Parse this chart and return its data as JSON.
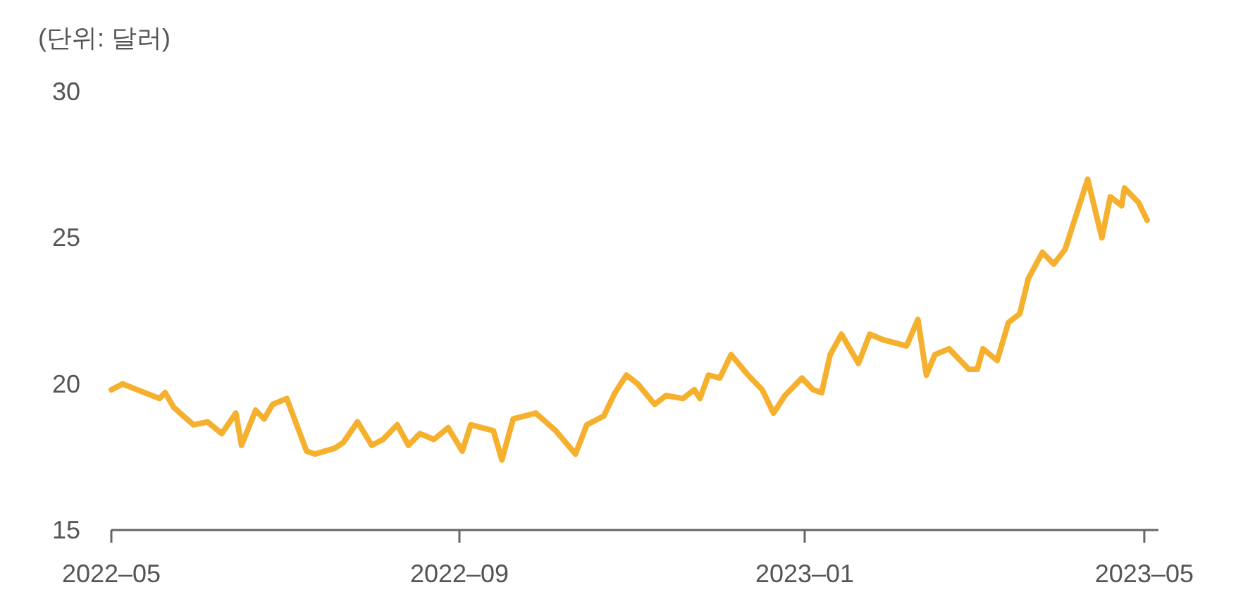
{
  "chart_data": {
    "type": "line",
    "ylabel": "(단위: 달러)",
    "x": [
      "2022-05-01",
      "2022-05-03",
      "2022-05-05",
      "2022-05-18",
      "2022-05-20",
      "2022-05-23",
      "2022-05-30",
      "2022-06-04",
      "2022-06-09",
      "2022-06-14",
      "2022-06-16",
      "2022-06-21",
      "2022-06-24",
      "2022-06-27",
      "2022-07-02",
      "2022-07-09",
      "2022-07-12",
      "2022-07-19",
      "2022-07-22",
      "2022-07-27",
      "2022-08-01",
      "2022-08-05",
      "2022-08-10",
      "2022-08-14",
      "2022-08-18",
      "2022-08-23",
      "2022-08-28",
      "2022-09-02",
      "2022-09-05",
      "2022-09-13",
      "2022-09-16",
      "2022-09-20",
      "2022-09-28",
      "2022-10-05",
      "2022-10-12",
      "2022-10-16",
      "2022-10-22",
      "2022-10-26",
      "2022-10-30",
      "2022-11-03",
      "2022-11-09",
      "2022-11-13",
      "2022-11-19",
      "2022-11-23",
      "2022-11-25",
      "2022-11-28",
      "2022-12-02",
      "2022-12-06",
      "2022-12-12",
      "2022-12-17",
      "2022-12-21",
      "2022-12-25",
      "2022-12-31",
      "2023-01-04",
      "2023-01-07",
      "2023-01-10",
      "2023-01-14",
      "2023-01-20",
      "2023-01-24",
      "2023-01-29",
      "2023-02-06",
      "2023-02-10",
      "2023-02-13",
      "2023-02-16",
      "2023-02-21",
      "2023-02-28",
      "2023-03-03",
      "2023-03-05",
      "2023-03-10",
      "2023-03-14",
      "2023-03-18",
      "2023-03-21",
      "2023-03-26",
      "2023-03-30",
      "2023-04-03",
      "2023-04-05",
      "2023-04-11",
      "2023-04-16",
      "2023-04-19",
      "2023-04-23",
      "2023-04-24",
      "2023-04-29",
      "2023-05-02"
    ],
    "series": [
      {
        "color": "#f5b02e",
        "values": [
          19.8,
          19.9,
          20.0,
          19.5,
          19.7,
          19.2,
          18.6,
          18.7,
          18.3,
          19.0,
          17.9,
          19.1,
          18.8,
          19.3,
          19.5,
          17.7,
          17.6,
          17.8,
          18.0,
          18.7,
          17.9,
          18.1,
          18.6,
          17.9,
          18.3,
          18.1,
          18.5,
          17.7,
          18.6,
          18.4,
          17.4,
          18.8,
          19.0,
          18.4,
          17.6,
          18.6,
          18.9,
          19.7,
          20.3,
          20.0,
          19.3,
          19.6,
          19.5,
          19.8,
          19.5,
          20.3,
          20.2,
          21.0,
          20.3,
          19.8,
          19.0,
          19.6,
          20.2,
          19.8,
          19.7,
          21.0,
          21.7,
          20.7,
          21.7,
          21.5,
          21.3,
          22.2,
          20.3,
          21.0,
          21.2,
          20.5,
          20.5,
          21.2,
          20.8,
          22.1,
          22.4,
          23.6,
          24.5,
          24.1,
          24.6,
          25.2,
          27.0,
          25.0,
          26.4,
          26.1,
          26.7,
          26.2,
          25.6
        ]
      }
    ],
    "xlim": [
      "2022-05-01",
      "2023-05-06"
    ],
    "xticks": [
      {
        "value": "2022-05-01",
        "label": "2022–05"
      },
      {
        "value": "2022-09-01",
        "label": "2022–09"
      },
      {
        "value": "2023-01-01",
        "label": "2023–01"
      },
      {
        "value": "2023-05-01",
        "label": "2023–05"
      }
    ],
    "ylim": [
      15,
      30
    ],
    "yticks": [
      15,
      20,
      25,
      30
    ],
    "grid": false,
    "marker": "none",
    "line_style": "solid"
  }
}
